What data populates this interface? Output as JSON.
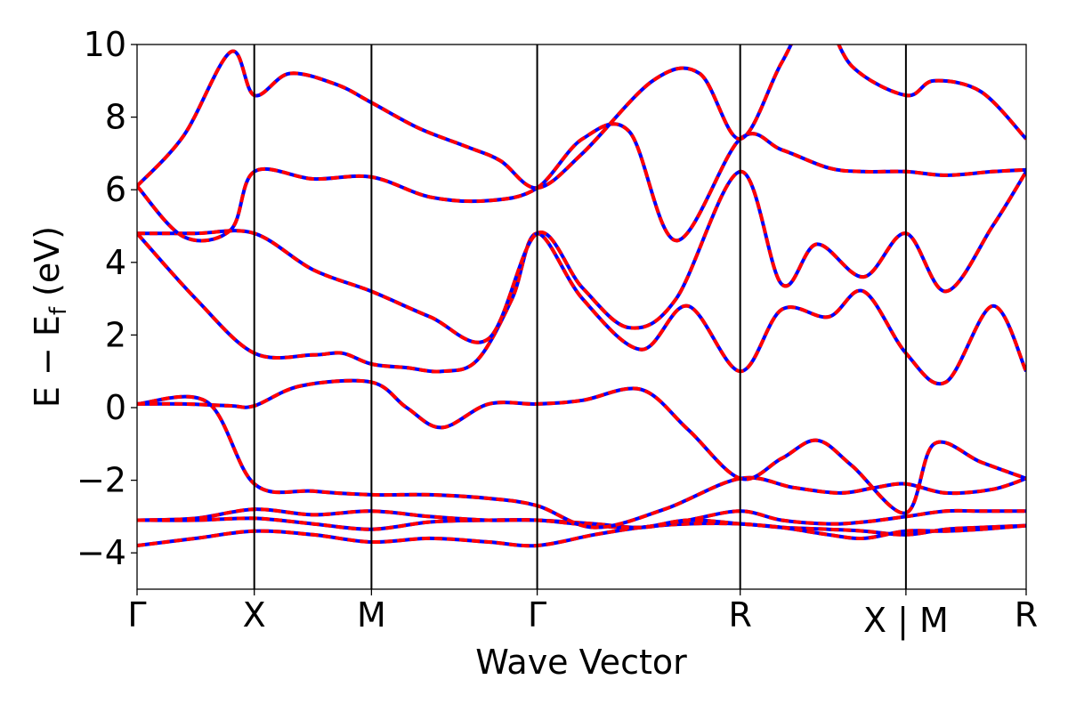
{
  "chart_data": {
    "type": "line",
    "title": "",
    "xlabel": "Wave Vector",
    "ylabel_main": "E − E",
    "ylabel_sub": "f",
    "ylabel_unit": "(eV)",
    "ylim": [
      -5,
      10
    ],
    "yticks": [
      -4,
      -2,
      0,
      2,
      4,
      6,
      8,
      10
    ],
    "ytick_labels": [
      "−4",
      "−2",
      "0",
      "2",
      "4",
      "6",
      "8",
      "10"
    ],
    "xlim": [
      0,
      7.586
    ],
    "kpoints": [
      {
        "label": "Γ",
        "x": 0
      },
      {
        "label": "X",
        "x": 1.0
      },
      {
        "label": "M",
        "x": 2.0
      },
      {
        "label": "Γ",
        "x": 3.414
      },
      {
        "label": "R",
        "x": 5.146
      },
      {
        "label": "X | M",
        "x": 6.56
      },
      {
        "label": "R",
        "x": 7.586
      }
    ],
    "grid": false,
    "legend": "none",
    "line_colors": {
      "primary": "#0000ff",
      "overlay": "#ff0000"
    },
    "bands": [
      {
        "x": [
          0,
          0.5,
          1.0,
          1.5,
          2.0,
          2.5,
          3.0,
          3.414,
          3.9,
          4.3,
          4.7,
          5.146,
          5.5,
          5.9,
          6.2,
          6.56,
          6.9,
          7.2,
          7.586
        ],
        "y": [
          -3.8,
          -3.6,
          -3.4,
          -3.5,
          -3.7,
          -3.6,
          -3.7,
          -3.8,
          -3.5,
          -3.3,
          -3.2,
          -3.2,
          -3.3,
          -3.35,
          -3.4,
          -3.5,
          -3.35,
          -3.3,
          -3.25
        ]
      },
      {
        "x": [
          0,
          0.5,
          1.0,
          1.5,
          2.0,
          2.5,
          3.0,
          3.414,
          3.9,
          4.3,
          4.7,
          5.146,
          5.5,
          5.9,
          6.2,
          6.56,
          6.9,
          7.2,
          7.586
        ],
        "y": [
          -3.1,
          -3.1,
          -3.05,
          -3.2,
          -3.35,
          -3.15,
          -3.1,
          -3.1,
          -3.2,
          -3.3,
          -3.1,
          -2.85,
          -3.1,
          -3.2,
          -3.15,
          -3.0,
          -2.85,
          -2.85,
          -2.85
        ]
      },
      {
        "x": [
          0,
          0.5,
          1.0,
          1.5,
          2.0,
          2.5,
          3.0,
          3.414,
          3.9,
          4.3,
          4.7,
          5.146,
          5.5,
          5.9,
          6.2,
          6.56,
          6.9,
          7.2,
          7.586
        ],
        "y": [
          -3.1,
          -3.05,
          -2.8,
          -2.95,
          -2.85,
          -3.0,
          -3.1,
          -3.1,
          -3.25,
          -3.3,
          -3.1,
          -3.2,
          -3.3,
          -3.5,
          -3.6,
          -3.4,
          -3.4,
          -3.35,
          -3.25
        ]
      },
      {
        "x": [
          0,
          0.6,
          1.0,
          1.5,
          2.0,
          2.5,
          3.0,
          3.414,
          3.9,
          4.5,
          5.146,
          5.6,
          6.0,
          6.3,
          6.56,
          6.9,
          7.3,
          7.586
        ],
        "y": [
          0.1,
          0.15,
          -2.1,
          -2.3,
          -2.4,
          -2.4,
          -2.5,
          -2.7,
          -3.3,
          -2.8,
          -1.95,
          -2.2,
          -2.35,
          -2.2,
          -2.1,
          -2.35,
          -2.25,
          -1.95
        ]
      },
      {
        "x": [
          0,
          0.4,
          0.8,
          1.0,
          1.4,
          2.0,
          2.3,
          2.6,
          3.0,
          3.414,
          3.8,
          4.3,
          4.7,
          5.146,
          5.5,
          5.8,
          6.1,
          6.56,
          6.8,
          7.2,
          7.586
        ],
        "y": [
          0.1,
          0.1,
          0.05,
          0.05,
          0.6,
          0.7,
          0.0,
          -0.55,
          0.1,
          0.1,
          0.2,
          0.5,
          -0.6,
          -1.95,
          -1.4,
          -0.9,
          -1.6,
          -2.9,
          -1.0,
          -1.5,
          -1.95
        ]
      },
      {
        "x": [
          0,
          0.5,
          1.0,
          1.5,
          1.75,
          2.0,
          2.3,
          2.6,
          2.9,
          3.2,
          3.414,
          3.8,
          4.3,
          4.7,
          5.146,
          5.5,
          5.9,
          6.2,
          6.56,
          6.9,
          7.3,
          7.586
        ],
        "y": [
          4.8,
          3.0,
          1.5,
          1.45,
          1.5,
          1.2,
          1.1,
          1.0,
          1.3,
          3.0,
          4.8,
          3.0,
          1.6,
          2.8,
          1.0,
          2.7,
          2.5,
          3.2,
          1.5,
          0.7,
          2.8,
          1.0
        ]
      },
      {
        "x": [
          0,
          0.5,
          1.0,
          1.5,
          2.0,
          2.5,
          3.0,
          3.414,
          3.8,
          4.2,
          4.6,
          5.146,
          5.5,
          5.8,
          6.2,
          6.56,
          6.9,
          7.3,
          7.586
        ],
        "y": [
          4.8,
          4.8,
          4.8,
          3.8,
          3.2,
          2.5,
          1.9,
          4.8,
          3.3,
          2.2,
          3.0,
          6.5,
          3.4,
          4.5,
          3.6,
          4.8,
          3.2,
          5.0,
          6.5
        ]
      },
      {
        "x": [
          0,
          0.4,
          0.8,
          1.0,
          1.5,
          2.0,
          2.5,
          3.0,
          3.414,
          3.8,
          4.2,
          4.6,
          5.146,
          5.5,
          5.9,
          6.2,
          6.56,
          6.9,
          7.3,
          7.586
        ],
        "y": [
          6.1,
          4.7,
          4.9,
          6.5,
          6.3,
          6.35,
          5.8,
          5.7,
          6.05,
          7.4,
          7.6,
          4.6,
          7.4,
          7.1,
          6.6,
          6.5,
          6.5,
          6.4,
          6.5,
          6.55
        ]
      },
      {
        "x": [
          0,
          0.4,
          0.8,
          1.0,
          1.3,
          1.7,
          2.0,
          2.4,
          2.8,
          3.1,
          3.414,
          3.8,
          4.4,
          4.8,
          5.146,
          5.5,
          5.8,
          6.1,
          6.56,
          6.8,
          7.2,
          7.586
        ],
        "y": [
          6.1,
          7.5,
          9.8,
          8.6,
          9.2,
          8.9,
          8.4,
          7.7,
          7.2,
          6.8,
          6.05,
          7.0,
          9.0,
          9.2,
          7.4,
          9.5,
          11.0,
          9.4,
          8.6,
          9.0,
          8.7,
          7.4
        ]
      }
    ]
  }
}
